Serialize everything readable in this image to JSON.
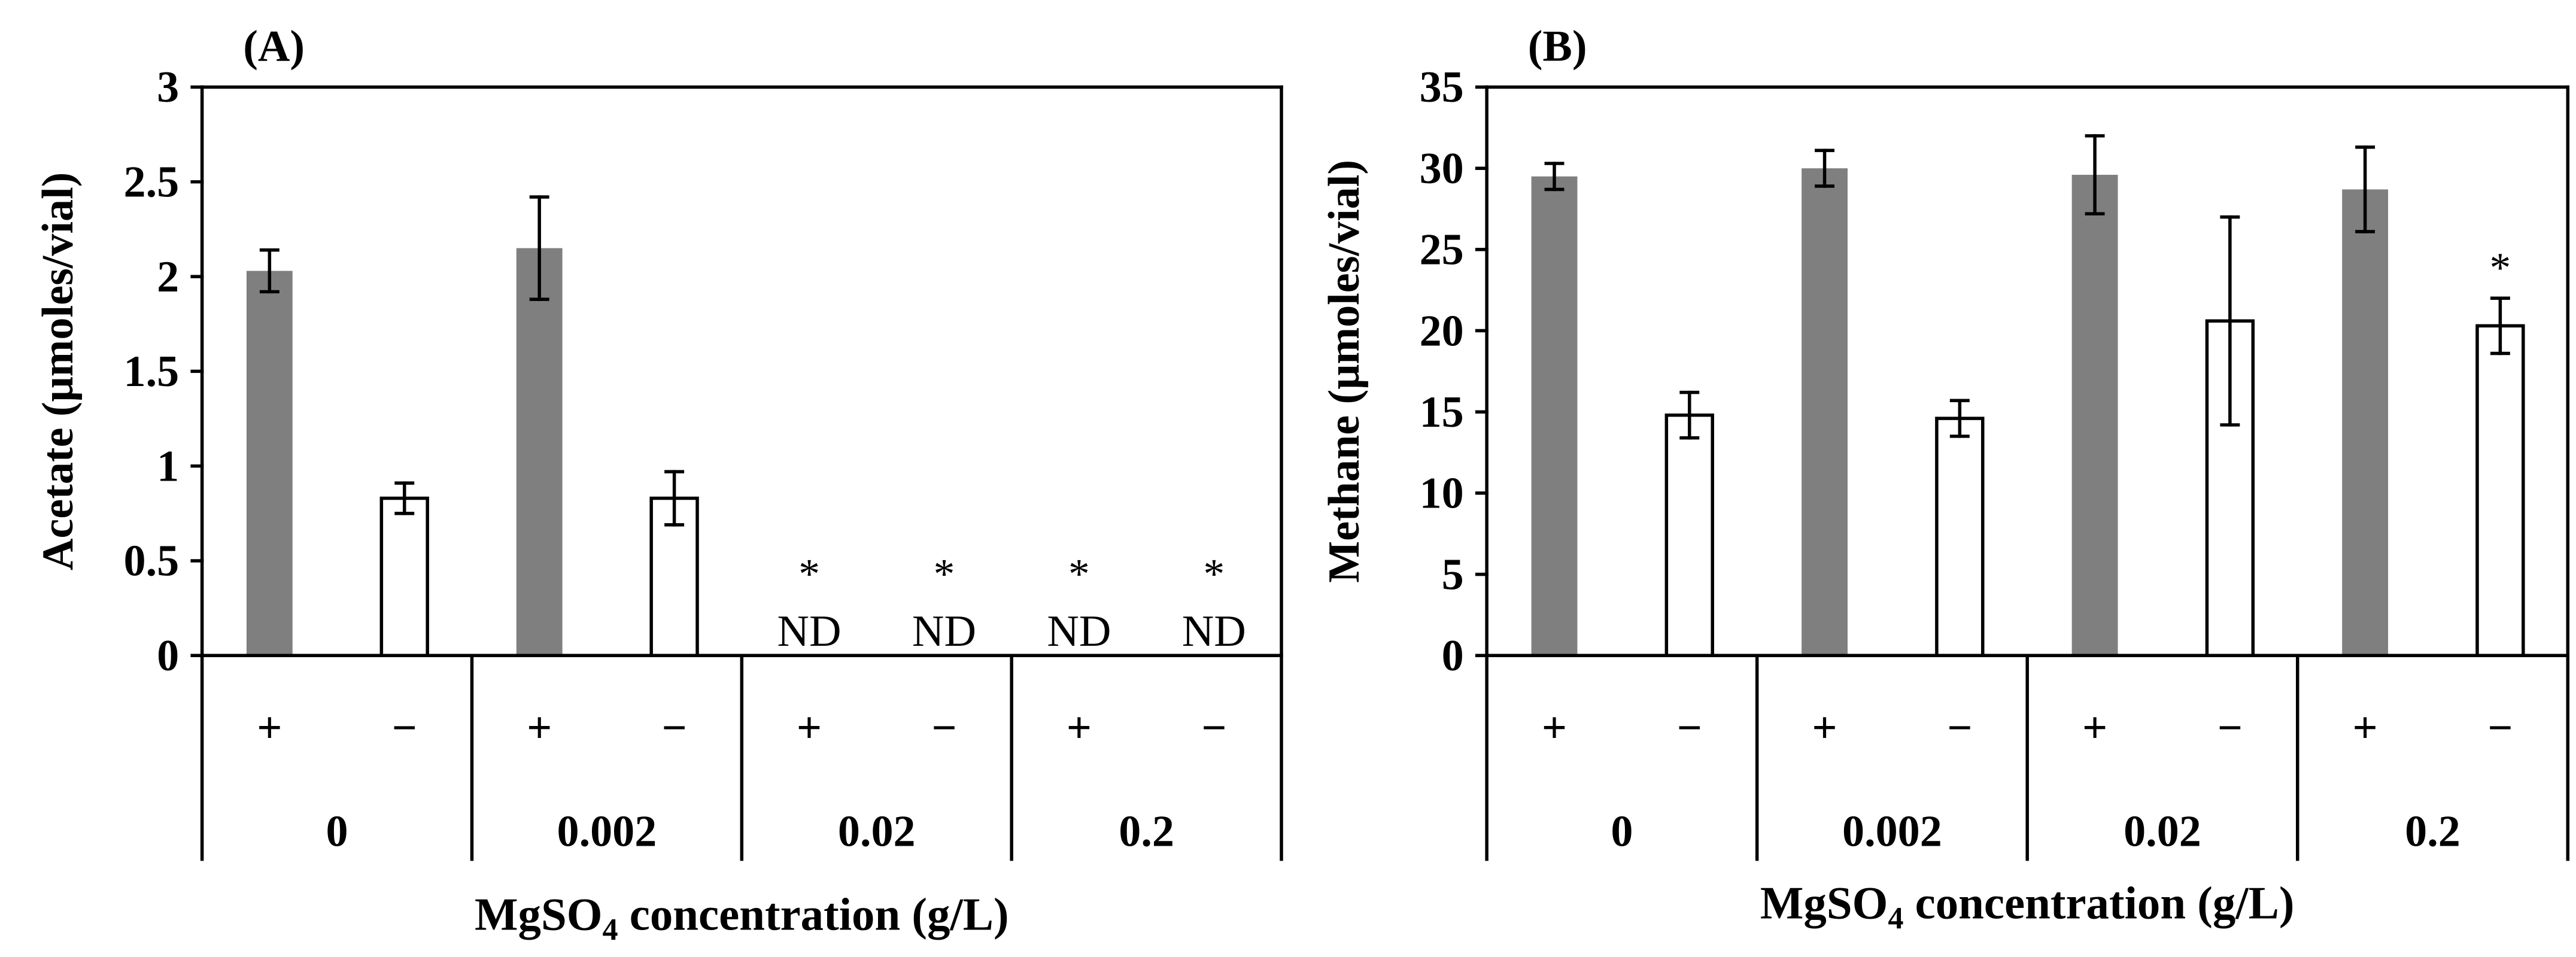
{
  "chart_data": [
    {
      "panel_label": "(A)",
      "type": "bar",
      "ylabel": "Acetate (μmoles/vial)",
      "xlabel": {
        "main": "MgSO",
        "subscript": "4",
        "rest": " concentration (g/L)"
      },
      "ylim": [
        0,
        3
      ],
      "yticks": [
        0,
        0.5,
        1,
        1.5,
        2,
        2.5,
        3
      ],
      "ytick_labels": [
        "0",
        "0.5",
        "1",
        "1.5",
        "2",
        "2.5",
        "3"
      ],
      "groups": [
        "0",
        "0.002",
        "0.02",
        "0.2"
      ],
      "series": [
        {
          "name": "+",
          "fill": "#7f7f7f",
          "edge": null,
          "values": [
            2.03,
            2.15,
            null,
            null
          ],
          "errors": [
            0.11,
            0.27,
            null,
            null
          ],
          "markers": [
            null,
            null,
            "*",
            "*"
          ],
          "notes": [
            null,
            null,
            "ND",
            "ND"
          ]
        },
        {
          "name": "−",
          "fill": "#ffffff",
          "edge": "#000000",
          "values": [
            0.83,
            0.83,
            null,
            null
          ],
          "errors": [
            0.08,
            0.14,
            null,
            null
          ],
          "markers": [
            null,
            null,
            "*",
            "*"
          ],
          "notes": [
            null,
            null,
            "ND",
            "ND"
          ]
        }
      ]
    },
    {
      "panel_label": "(B)",
      "type": "bar",
      "ylabel": "Methane (μmoles/vial)",
      "xlabel": {
        "main": "MgSO",
        "subscript": "4",
        "rest": " concentration (g/L)"
      },
      "ylim": [
        0,
        35
      ],
      "yticks": [
        0,
        5,
        10,
        15,
        20,
        25,
        30,
        35
      ],
      "ytick_labels": [
        "0",
        "5",
        "10",
        "15",
        "20",
        "25",
        "30",
        "35"
      ],
      "groups": [
        "0",
        "0.002",
        "0.02",
        "0.2"
      ],
      "series": [
        {
          "name": "+",
          "fill": "#7f7f7f",
          "edge": null,
          "values": [
            29.5,
            30.0,
            29.6,
            28.7
          ],
          "errors": [
            0.8,
            1.1,
            2.4,
            2.6
          ],
          "markers": [
            null,
            null,
            null,
            null
          ],
          "notes": [
            null,
            null,
            null,
            null
          ]
        },
        {
          "name": "−",
          "fill": "#ffffff",
          "edge": "#000000",
          "values": [
            14.8,
            14.6,
            20.6,
            20.3
          ],
          "errors": [
            1.4,
            1.1,
            6.4,
            1.7
          ],
          "markers": [
            null,
            null,
            null,
            "*"
          ],
          "notes": [
            null,
            null,
            null,
            null
          ]
        }
      ]
    }
  ],
  "axis_color": "#000000"
}
